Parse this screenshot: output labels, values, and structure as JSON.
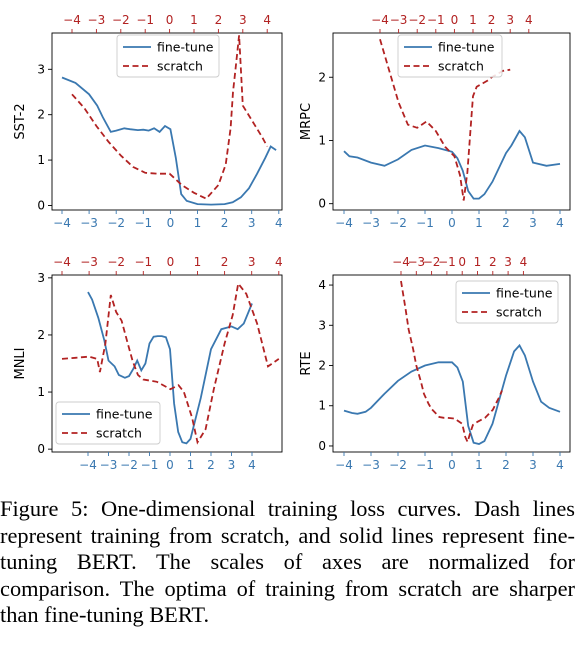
{
  "caption": "Figure 5: One-dimensional training loss curves. Dash lines represent training from scratch, and solid lines represent fine-tuning BERT. The scales of axes are normalized for comparison. The optima of training from scratch are sharper than fine-tuning BERT.",
  "colors": {
    "finetune": "#3a78b0",
    "scratch": "#b22222"
  },
  "chart_data": [
    {
      "type": "line",
      "ylabel": "SST-2",
      "legend": {
        "placement": "top-center",
        "entries": [
          "fine-tune",
          "scratch"
        ]
      },
      "x_ticks_bottom": [
        "−4",
        "−3",
        "−2",
        "−1",
        "0",
        "1",
        "2",
        "3",
        "4"
      ],
      "x_ticks_top": [
        "−4",
        "−3",
        "−2",
        "−1",
        "0",
        "1",
        "2",
        "3",
        "4"
      ],
      "y_ticks": [
        "0",
        "1",
        "2",
        "3"
      ],
      "ylim": [
        -0.1,
        3.8
      ],
      "series": [
        {
          "name": "fine-tune",
          "axis": "bottom",
          "x": [
            -4,
            -3.5,
            -3,
            -2.7,
            -2.5,
            -2.2,
            -2,
            -1.7,
            -1.5,
            -1.2,
            -1,
            -0.8,
            -0.6,
            -0.4,
            -0.2,
            0,
            0.2,
            0.4,
            0.6,
            1,
            1.5,
            2,
            2.3,
            2.6,
            2.9,
            3.2,
            3.5,
            3.7,
            3.9
          ],
          "y": [
            2.82,
            2.7,
            2.45,
            2.2,
            1.95,
            1.62,
            1.65,
            1.7,
            1.68,
            1.66,
            1.67,
            1.65,
            1.7,
            1.62,
            1.75,
            1.68,
            1.05,
            0.25,
            0.1,
            0.03,
            0.02,
            0.03,
            0.07,
            0.18,
            0.38,
            0.7,
            1.05,
            1.3,
            1.22
          ]
        },
        {
          "name": "scratch",
          "axis": "top",
          "x": [
            -4,
            -3.5,
            -3,
            -2.5,
            -2,
            -1.5,
            -1,
            -0.5,
            0,
            0.5,
            1,
            1.5,
            2,
            2.3,
            2.5,
            2.6,
            2.7,
            2.85,
            3,
            3.4,
            3.8,
            4
          ],
          "y": [
            2.45,
            2.15,
            1.75,
            1.4,
            1.1,
            0.85,
            0.72,
            0.7,
            0.7,
            0.45,
            0.28,
            0.15,
            0.45,
            0.9,
            1.7,
            2.5,
            3.0,
            3.75,
            2.2,
            1.85,
            1.5,
            1.3
          ]
        }
      ]
    },
    {
      "type": "line",
      "ylabel": "MRPC",
      "legend": {
        "placement": "top-right",
        "entries": [
          "fine-tune",
          "scratch"
        ]
      },
      "x_ticks_bottom": [
        "−4",
        "−3",
        "−2",
        "−1",
        "0",
        "1",
        "2",
        "3",
        "4"
      ],
      "x_ticks_top": [
        "−4",
        "−3",
        "−2",
        "−1",
        "0",
        "1",
        "2",
        "3",
        "4"
      ],
      "y_ticks": [
        "0",
        "1",
        "2"
      ],
      "ylim": [
        -0.1,
        2.7
      ],
      "series": [
        {
          "name": "fine-tune",
          "axis": "bottom",
          "x": [
            -4,
            -3.8,
            -3.5,
            -3,
            -2.5,
            -2,
            -1.5,
            -1,
            -0.5,
            0,
            0.2,
            0.4,
            0.6,
            0.8,
            1,
            1.2,
            1.5,
            2,
            2.2,
            2.5,
            2.7,
            3,
            3.5,
            4
          ],
          "y": [
            0.83,
            0.75,
            0.73,
            0.65,
            0.6,
            0.7,
            0.85,
            0.92,
            0.88,
            0.82,
            0.72,
            0.52,
            0.2,
            0.08,
            0.08,
            0.15,
            0.35,
            0.8,
            0.92,
            1.15,
            1.05,
            0.65,
            0.6,
            0.63
          ]
        },
        {
          "name": "scratch",
          "axis": "top",
          "x": [
            -4,
            -3.5,
            -3,
            -2.5,
            -2,
            -1.5,
            -1,
            -0.5,
            0,
            0.3,
            0.5,
            0.7,
            0.9,
            1,
            1.2,
            1.5,
            1.8,
            2,
            2.3,
            2.6,
            3
          ],
          "y": [
            2.6,
            2.1,
            1.6,
            1.25,
            1.2,
            1.3,
            1.15,
            0.9,
            0.75,
            0.45,
            0.05,
            0.5,
            1.3,
            1.7,
            1.85,
            1.9,
            1.95,
            2.0,
            2.05,
            2.1,
            2.12
          ]
        }
      ]
    },
    {
      "type": "line",
      "ylabel": "MNLI",
      "legend": {
        "placement": "bottom-left",
        "entries": [
          "fine-tune",
          "scratch"
        ]
      },
      "x_ticks_bottom": [
        "−4",
        "−3",
        "−2",
        "−1",
        "0",
        "1",
        "2",
        "3",
        "4"
      ],
      "x_ticks_top": [
        "−4",
        "−3",
        "−2",
        "−1",
        "0",
        "1",
        "2",
        "3",
        "4"
      ],
      "y_ticks": [
        "0",
        "1",
        "2",
        "3"
      ],
      "ylim": [
        -0.05,
        3.05
      ],
      "series": [
        {
          "name": "fine-tune",
          "axis": "bottom",
          "x": [
            -4,
            -3.8,
            -3.5,
            -3.2,
            -3,
            -2.7,
            -2.5,
            -2.2,
            -2,
            -1.8,
            -1.6,
            -1.4,
            -1.2,
            -1,
            -0.8,
            -0.6,
            -0.4,
            -0.2,
            0,
            0.2,
            0.4,
            0.6,
            0.8,
            1,
            1.5,
            2,
            2.5,
            3,
            3.3,
            3.6,
            4
          ],
          "y": [
            2.75,
            2.62,
            2.3,
            1.9,
            1.55,
            1.45,
            1.3,
            1.25,
            1.28,
            1.4,
            1.55,
            1.38,
            1.5,
            1.85,
            1.97,
            1.98,
            1.98,
            1.96,
            1.75,
            0.8,
            0.3,
            0.12,
            0.1,
            0.18,
            0.9,
            1.75,
            2.1,
            2.15,
            2.1,
            2.2,
            2.55
          ]
        },
        {
          "name": "scratch",
          "axis": "top",
          "x": [
            -4,
            -3.5,
            -3,
            -2.7,
            -2.6,
            -2.4,
            -2.2,
            -2,
            -1.8,
            -1.6,
            -1.4,
            -1.2,
            -1,
            -0.5,
            0,
            0.3,
            0.5,
            0.8,
            1,
            1.3,
            1.6,
            2,
            2.3,
            2.5,
            2.8,
            3.2,
            3.6,
            4
          ],
          "y": [
            1.58,
            1.6,
            1.62,
            1.58,
            1.35,
            1.85,
            2.7,
            2.4,
            2.25,
            1.9,
            1.55,
            1.3,
            1.22,
            1.18,
            1.05,
            1.12,
            1.0,
            0.55,
            0.12,
            0.35,
            1.05,
            1.85,
            2.35,
            2.9,
            2.72,
            2.2,
            1.45,
            1.58
          ]
        }
      ]
    },
    {
      "type": "line",
      "ylabel": "RTE",
      "legend": {
        "placement": "top-right",
        "entries": [
          "fine-tune",
          "scratch"
        ]
      },
      "x_ticks_bottom": [
        "−4",
        "−3",
        "−2",
        "−1",
        "0",
        "1",
        "2",
        "3",
        "4"
      ],
      "x_ticks_top": [
        "−4",
        "−3",
        "−2",
        "−1",
        "0",
        "1",
        "2",
        "3",
        "4"
      ],
      "y_ticks": [
        "0",
        "1",
        "2",
        "3",
        "4"
      ],
      "ylim": [
        -0.15,
        4.25
      ],
      "series": [
        {
          "name": "fine-tune",
          "axis": "bottom",
          "x": [
            -4,
            -3.7,
            -3.5,
            -3.2,
            -3,
            -2.5,
            -2,
            -1.5,
            -1,
            -0.5,
            0,
            0.2,
            0.4,
            0.6,
            0.8,
            1,
            1.2,
            1.5,
            2,
            2.3,
            2.5,
            2.7,
            3,
            3.3,
            3.6,
            4
          ],
          "y": [
            0.88,
            0.82,
            0.8,
            0.85,
            0.95,
            1.3,
            1.62,
            1.85,
            2.0,
            2.08,
            2.08,
            1.95,
            1.6,
            0.5,
            0.08,
            0.05,
            0.12,
            0.55,
            1.75,
            2.35,
            2.5,
            2.25,
            1.6,
            1.1,
            0.95,
            0.85
          ]
        },
        {
          "name": "scratch",
          "axis": "top",
          "x": [
            -4,
            -3.7,
            -3.5,
            -3.2,
            -3,
            -2.7,
            -2.5,
            -2.2,
            -2,
            -1.7,
            -1.5,
            -1.2,
            -1,
            -0.5,
            0,
            0.2,
            0.35,
            0.5,
            0.7,
            1,
            1.5,
            2,
            2.4,
            2.6
          ],
          "y": [
            4.1,
            3.4,
            2.9,
            2.4,
            2.0,
            1.6,
            1.3,
            1.05,
            0.92,
            0.8,
            0.72,
            0.7,
            0.7,
            0.68,
            0.55,
            0.22,
            0.1,
            0.3,
            0.52,
            0.6,
            0.7,
            0.9,
            1.2,
            1.38
          ]
        }
      ]
    }
  ]
}
